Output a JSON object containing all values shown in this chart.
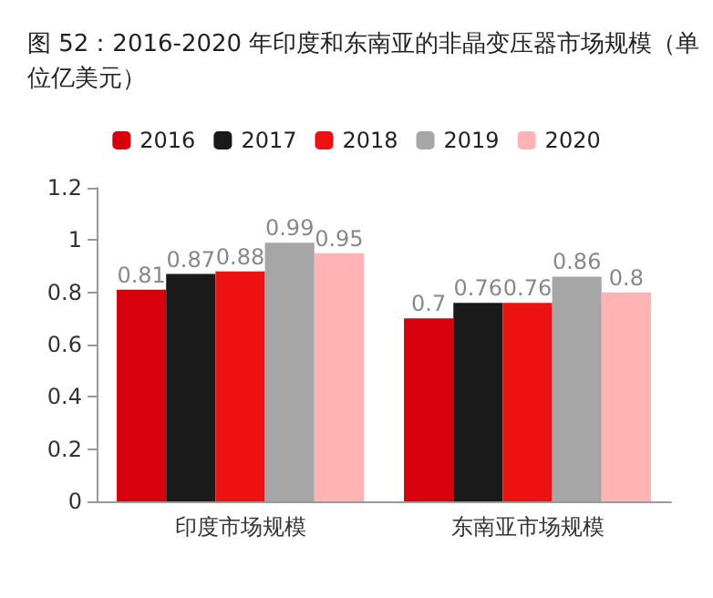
{
  "chart_data": {
    "type": "bar",
    "title": "图 52：2016-2020 年印度和东南亚的非晶变压器市场规模（单位亿美元）",
    "categories": [
      "印度市场规模",
      "东南亚市场规模"
    ],
    "series": [
      {
        "name": "2016",
        "color": "#d9000d",
        "values": [
          0.81,
          0.7
        ]
      },
      {
        "name": "2017",
        "color": "#1a1a1a",
        "values": [
          0.87,
          0.76
        ]
      },
      {
        "name": "2018",
        "color": "#ee1111",
        "values": [
          0.88,
          0.76
        ]
      },
      {
        "name": "2019",
        "color": "#a6a6a6",
        "values": [
          0.99,
          0.86
        ]
      },
      {
        "name": "2020",
        "color": "#ffb3b3",
        "values": [
          0.95,
          0.8
        ]
      }
    ],
    "ylim": [
      0,
      1.2
    ],
    "yticks": [
      0,
      0.2,
      0.4,
      0.6,
      0.8,
      1,
      1.2
    ],
    "grid": false,
    "legend": "top",
    "data_labels": true
  }
}
